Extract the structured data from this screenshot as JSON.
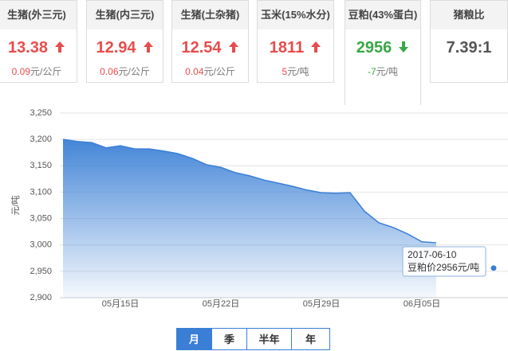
{
  "cards": [
    {
      "name": "生猪(外三元)",
      "price": "13.38",
      "trend": "up",
      "change": "0.09",
      "unit": "元/公斤"
    },
    {
      "name": "生猪(内三元)",
      "price": "12.94",
      "trend": "up",
      "change": "0.06",
      "unit": "元/公斤"
    },
    {
      "name": "生猪(土杂猪)",
      "price": "12.54",
      "trend": "up",
      "change": "0.04",
      "unit": "元/公斤"
    },
    {
      "name": "玉米(15%水分)",
      "price": "1811",
      "trend": "up",
      "change": "5",
      "unit": "元/吨"
    },
    {
      "name": "豆粕(43%蛋白)",
      "price": "2956",
      "trend": "down",
      "change": "-7",
      "unit": "元/吨",
      "active": true
    },
    {
      "name": "猪粮比",
      "price": "7.39:1"
    }
  ],
  "chart_data": {
    "type": "area",
    "ylabel": "元/吨",
    "color": "#3a7fd5",
    "grid": true,
    "categories": [
      null,
      null,
      null,
      null,
      "05月15日",
      null,
      null,
      null,
      null,
      null,
      null,
      "05月22日",
      null,
      null,
      null,
      null,
      null,
      null,
      "05月29日",
      null,
      null,
      null,
      null,
      null,
      null,
      "06月05日",
      null,
      null,
      null,
      null,
      null
    ],
    "values": [
      3200,
      3196,
      3194,
      3184,
      3188,
      3182,
      3182,
      3178,
      3173,
      3164,
      3152,
      3147,
      3137,
      3131,
      3123,
      3117,
      3111,
      3104,
      3099,
      3098,
      3099,
      3064,
      3042,
      3033,
      3021,
      3006,
      3004,
      null,
      null,
      null,
      2956
    ],
    "ylim": [
      2900,
      3250
    ],
    "yticks": [
      {
        "value": 2900,
        "label": "2,900"
      },
      {
        "value": 2950,
        "label": "2,950"
      },
      {
        "value": 3000,
        "label": "3,000"
      },
      {
        "value": 3050,
        "label": "3,050"
      },
      {
        "value": 3100,
        "label": "3,100"
      },
      {
        "value": 3150,
        "label": "3,150"
      },
      {
        "value": 3200,
        "label": "3,200"
      },
      {
        "value": 3250,
        "label": "3,250"
      }
    ],
    "tooltip": {
      "date": "2017-06-10",
      "label": "豆粕价2956元/吨"
    }
  },
  "range_buttons": [
    {
      "label": "月",
      "active": true
    },
    {
      "label": "季"
    },
    {
      "label": "半年"
    },
    {
      "label": "年"
    }
  ]
}
